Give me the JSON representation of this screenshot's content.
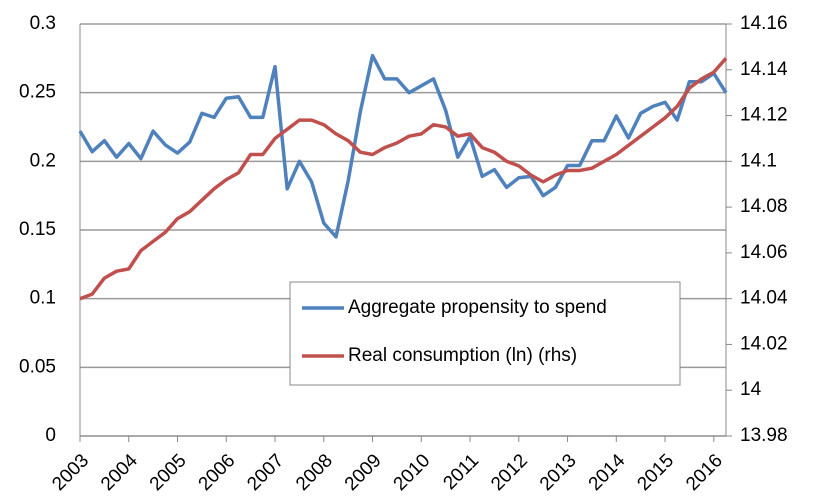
{
  "chart_data": {
    "type": "line",
    "categories": [
      "2003",
      null,
      null,
      null,
      "2004",
      null,
      null,
      null,
      "2005",
      null,
      null,
      null,
      "2006",
      null,
      null,
      null,
      "2007",
      null,
      null,
      null,
      "2008",
      null,
      null,
      null,
      "2009",
      null,
      null,
      null,
      "2010",
      null,
      null,
      null,
      "2011",
      null,
      null,
      null,
      "2012",
      null,
      null,
      null,
      "2013",
      null,
      null,
      null,
      "2014",
      null,
      null,
      null,
      "2015",
      null,
      null,
      null,
      "2016",
      null
    ],
    "series": [
      {
        "name": "Aggregate propensity to spend",
        "color": "#4f81bd",
        "values": [
          0.222,
          0.207,
          0.215,
          0.203,
          0.213,
          0.202,
          0.222,
          0.212,
          0.206,
          0.214,
          0.235,
          0.232,
          0.246,
          0.247,
          0.232,
          0.232,
          0.269,
          0.18,
          0.2,
          0.185,
          0.155,
          0.145,
          0.186,
          0.236,
          0.277,
          0.26,
          0.26,
          0.25,
          0.255,
          0.26,
          0.237,
          0.203,
          0.218,
          0.189,
          0.194,
          0.181,
          0.188,
          0.189,
          0.175,
          0.181,
          0.197,
          0.197,
          0.215,
          0.215,
          0.233,
          0.217,
          0.235,
          0.24,
          0.243,
          0.23,
          0.258,
          0.258,
          0.264,
          0.25
        ]
      },
      {
        "name": "Real consumption (ln) (rhs)",
        "color": "#c0504d",
        "axis": "y2",
        "values": [
          14.04,
          14.042,
          14.049,
          14.052,
          14.053,
          14.061,
          14.065,
          14.069,
          14.075,
          14.078,
          14.083,
          14.088,
          14.092,
          14.095,
          14.103,
          14.103,
          14.11,
          14.114,
          14.118,
          14.118,
          14.116,
          14.112,
          14.109,
          14.104,
          14.103,
          14.106,
          14.108,
          14.111,
          14.112,
          14.116,
          14.115,
          14.111,
          14.112,
          14.106,
          14.104,
          14.1,
          14.098,
          14.094,
          14.091,
          14.094,
          14.096,
          14.096,
          14.097,
          14.1,
          14.103,
          14.107,
          14.111,
          14.115,
          14.119,
          14.124,
          14.132,
          14.136,
          14.139,
          14.145
        ]
      }
    ],
    "ylim": [
      0,
      0.3
    ],
    "yticks": [
      0,
      0.05,
      0.1,
      0.15,
      0.2,
      0.25,
      0.3
    ],
    "y2lim": [
      13.98,
      14.16
    ],
    "y2ticks": [
      13.98,
      14,
      14.02,
      14.04,
      14.06,
      14.08,
      14.1,
      14.12,
      14.14,
      14.16
    ],
    "grid": true,
    "legend": "center"
  }
}
